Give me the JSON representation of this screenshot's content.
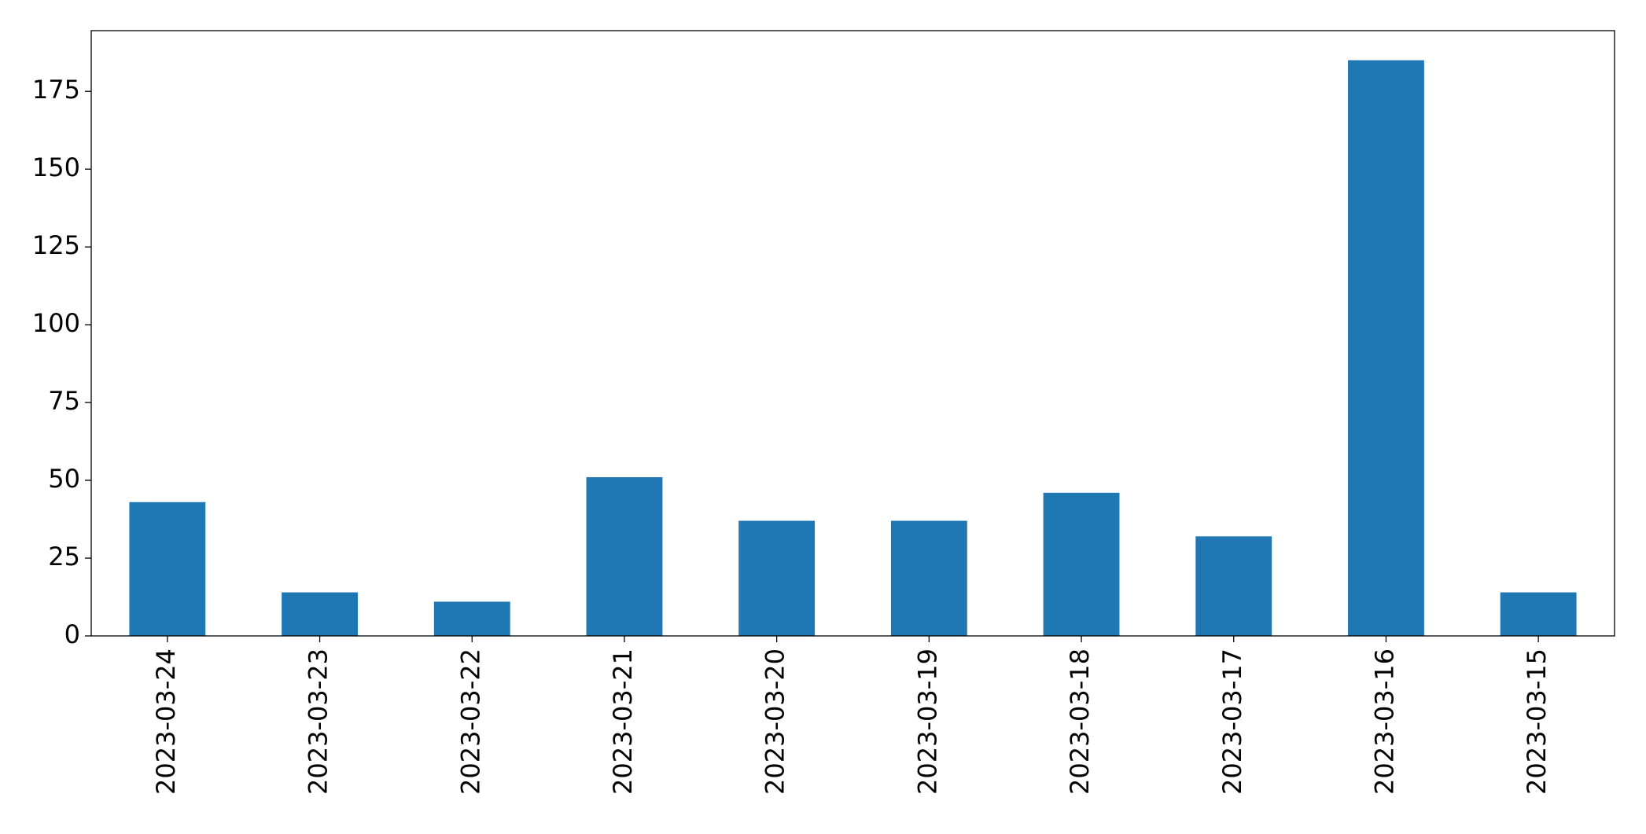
{
  "chart_data": {
    "type": "bar",
    "categories": [
      "2023-03-24",
      "2023-03-23",
      "2023-03-22",
      "2023-03-21",
      "2023-03-20",
      "2023-03-19",
      "2023-03-18",
      "2023-03-17",
      "2023-03-16",
      "2023-03-15"
    ],
    "values": [
      43,
      14,
      11,
      51,
      37,
      37,
      46,
      32,
      185,
      14
    ],
    "color": "#1f77b4",
    "ylim": [
      0,
      194.5
    ],
    "yticks": [
      0,
      25,
      50,
      75,
      100,
      125,
      150,
      175
    ],
    "grid": false
  }
}
